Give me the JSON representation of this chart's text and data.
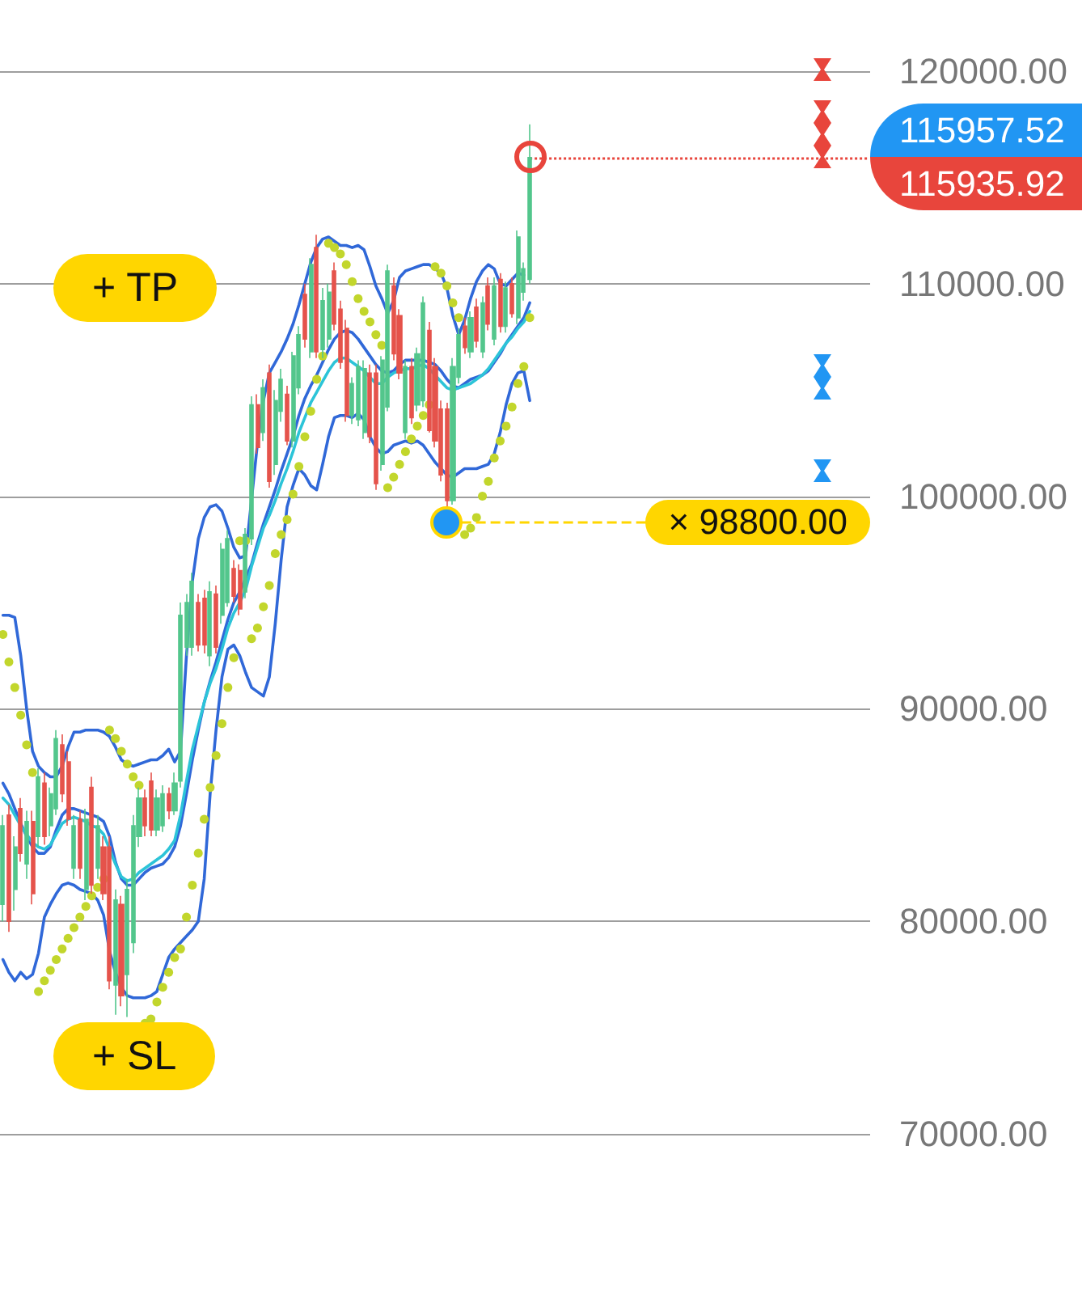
{
  "chart_data": {
    "type": "candlestick",
    "categories": [
      null,
      null,
      null,
      null,
      null,
      null,
      null,
      null,
      null,
      null,
      null,
      null,
      null,
      null,
      null,
      null,
      null,
      null,
      null,
      null,
      null,
      null,
      null,
      null,
      null,
      null,
      null,
      null,
      null,
      null,
      null,
      null,
      null,
      null,
      null,
      null,
      null,
      null,
      null,
      null,
      null,
      null,
      null,
      null,
      null,
      null,
      null,
      null,
      null,
      null,
      null,
      null,
      null,
      null,
      null,
      null,
      null,
      null,
      null,
      null,
      null,
      null,
      null,
      null,
      null,
      null,
      null,
      null,
      null,
      null,
      null,
      null,
      null,
      null,
      null,
      null,
      null,
      null,
      null,
      null,
      null,
      null,
      null,
      null,
      null,
      null,
      null,
      null,
      null,
      null,
      null,
      null,
      null,
      null,
      null,
      null,
      null,
      null,
      null,
      null,
      null,
      null,
      null,
      null,
      null,
      null,
      null,
      null,
      null,
      null,
      null,
      null,
      null,
      null,
      null,
      null,
      null,
      null,
      null,
      null,
      null,
      null,
      null,
      null,
      null,
      null,
      null,
      null,
      null,
      null,
      null,
      null,
      null,
      null,
      null,
      null,
      null,
      null,
      null,
      null,
      null,
      null,
      null,
      null,
      null,
      null,
      null
    ],
    "ohlc": [
      [
        80800,
        85000,
        80000,
        84500
      ],
      [
        85000,
        85500,
        79500,
        80000
      ],
      [
        81500,
        84000,
        80500,
        83500
      ],
      [
        85300,
        85800,
        82800,
        83200
      ],
      [
        82700,
        85200,
        82000,
        84700
      ],
      [
        84700,
        85200,
        80800,
        81300
      ],
      [
        84000,
        87200,
        83500,
        86800
      ],
      [
        86500,
        87000,
        83600,
        84000
      ],
      [
        84500,
        86300,
        84000,
        86000
      ],
      [
        85300,
        89000,
        85000,
        88600
      ],
      [
        88300,
        88800,
        85600,
        86000
      ],
      [
        87500,
        88000,
        84500,
        84800
      ],
      [
        82500,
        85000,
        82000,
        84500
      ],
      [
        84800,
        85200,
        82000,
        82500
      ],
      [
        81500,
        85300,
        81000,
        84800
      ],
      [
        86300,
        86800,
        81300,
        81700
      ],
      [
        82500,
        85000,
        82000,
        84500
      ],
      [
        83500,
        84000,
        81000,
        81300
      ],
      [
        83500,
        84000,
        76800,
        77200
      ],
      [
        77000,
        81500,
        75600,
        81000
      ],
      [
        80800,
        81200,
        76000,
        76500
      ],
      [
        77500,
        82000,
        75500,
        81500
      ],
      [
        79000,
        85000,
        78500,
        84500
      ],
      [
        84000,
        86300,
        83500,
        85800
      ],
      [
        85800,
        86200,
        84000,
        84500
      ],
      [
        86600,
        87000,
        84000,
        84300
      ],
      [
        84300,
        86200,
        84000,
        85800
      ],
      [
        84500,
        86400,
        84200,
        86000
      ],
      [
        86000,
        86300,
        84800,
        85200
      ],
      [
        85200,
        87000,
        85000,
        86500
      ],
      [
        86600,
        95000,
        86300,
        94400
      ],
      [
        92900,
        95400,
        92500,
        95000
      ],
      [
        92900,
        96400,
        92500,
        96000
      ],
      [
        95000,
        95400,
        92700,
        93000
      ],
      [
        95200,
        95600,
        92600,
        93000
      ],
      [
        92500,
        96000,
        92000,
        95500
      ],
      [
        95400,
        95800,
        92600,
        92900
      ],
      [
        94400,
        97800,
        94000,
        97500
      ],
      [
        95000,
        98400,
        94800,
        98000
      ],
      [
        96600,
        97000,
        95000,
        95300
      ],
      [
        96500,
        96800,
        94400,
        94700
      ],
      [
        95500,
        98500,
        95200,
        98200
      ],
      [
        98000,
        104700,
        97700,
        104300
      ],
      [
        104300,
        104800,
        102000,
        102300
      ],
      [
        103000,
        105500,
        102600,
        105100
      ],
      [
        105800,
        106200,
        100400,
        100700
      ],
      [
        101500,
        105000,
        101000,
        104500
      ],
      [
        104000,
        106000,
        103500,
        105500
      ],
      [
        104800,
        105200,
        102400,
        102600
      ],
      [
        102600,
        106800,
        102300,
        106600
      ],
      [
        105100,
        108000,
        104800,
        107600
      ],
      [
        109500,
        110000,
        107000,
        107400
      ],
      [
        106800,
        111200,
        106500,
        110900
      ],
      [
        111700,
        112300,
        106500,
        106800
      ],
      [
        106900,
        109800,
        106500,
        109200
      ],
      [
        107400,
        110000,
        107000,
        109600
      ],
      [
        110600,
        111000,
        107800,
        108100
      ],
      [
        108800,
        109200,
        106000,
        106300
      ],
      [
        107900,
        108300,
        103500,
        103800
      ],
      [
        103800,
        105600,
        103400,
        105300
      ],
      [
        103600,
        106400,
        103300,
        106100
      ],
      [
        103000,
        106400,
        102700,
        106000
      ],
      [
        105800,
        106200,
        102500,
        102800
      ],
      [
        105800,
        106200,
        100300,
        100600
      ],
      [
        101500,
        106600,
        101200,
        106400
      ],
      [
        104200,
        110900,
        104000,
        110600
      ],
      [
        109900,
        110300,
        106400,
        106700
      ],
      [
        108500,
        108800,
        105500,
        105800
      ],
      [
        103000,
        106400,
        102700,
        106100
      ],
      [
        106100,
        106500,
        103400,
        103700
      ],
      [
        104300,
        107000,
        104000,
        106700
      ],
      [
        104500,
        109400,
        104200,
        109100
      ],
      [
        107800,
        108200,
        103000,
        103100
      ],
      [
        106100,
        106500,
        102300,
        102600
      ],
      [
        104100,
        104500,
        100700,
        101000
      ],
      [
        104100,
        104400,
        99500,
        99800
      ],
      [
        99800,
        106500,
        99600,
        106100
      ],
      [
        105600,
        107900,
        105300,
        107600
      ],
      [
        108000,
        108400,
        106700,
        107000
      ],
      [
        106800,
        108700,
        106500,
        108400
      ],
      [
        108900,
        109300,
        107000,
        107300
      ],
      [
        106800,
        109400,
        106500,
        109100
      ],
      [
        109900,
        110300,
        107800,
        108100
      ],
      [
        107400,
        110300,
        107100,
        109900
      ],
      [
        110200,
        110500,
        107700,
        108000
      ],
      [
        108000,
        110100,
        107700,
        109800
      ],
      [
        110000,
        110300,
        108400,
        108600
      ],
      [
        108400,
        112500,
        108100,
        112200
      ],
      [
        109600,
        111000,
        109200,
        110700
      ],
      [
        110200,
        117500,
        110000,
        115935.92
      ],
      null,
      null,
      null,
      null,
      null,
      null,
      null,
      null,
      null,
      null,
      null,
      null,
      null,
      null,
      null,
      null,
      null,
      null,
      null,
      null,
      null,
      null,
      null,
      null,
      null,
      null,
      null,
      null,
      null,
      null,
      null,
      null,
      null,
      null,
      null,
      null,
      null,
      null,
      null,
      null,
      null,
      null,
      null,
      null,
      null,
      null,
      null,
      null,
      null,
      null,
      null,
      null,
      null,
      null,
      null,
      null,
      null
    ],
    "colors": [
      "#53c68c",
      "#e5534b",
      "#53c68c",
      "#e5534b",
      "#53c68c",
      "#e5534b",
      "#53c68c",
      "#e5534b",
      "#53c68c",
      "#53c68c",
      "#e5534b",
      "#e5534b",
      "#53c68c",
      "#e5534b",
      "#53c68c",
      "#e5534b",
      "#53c68c",
      "#e5534b",
      "#e5534b",
      "#53c68c",
      "#e5534b",
      "#53c68c",
      "#53c68c",
      "#53c68c",
      "#e5534b",
      "#e5534b",
      "#53c68c",
      "#53c68c",
      "#e5534b",
      "#53c68c",
      "#53c68c",
      "#53c68c",
      "#53c68c",
      "#e5534b",
      "#e5534b",
      "#53c68c",
      "#e5534b",
      "#53c68c",
      "#53c68c",
      "#e5534b",
      "#e5534b",
      "#53c68c",
      "#53c68c",
      "#e5534b",
      "#53c68c",
      "#e5534b",
      "#53c68c",
      "#53c68c",
      "#e5534b",
      "#53c68c",
      "#53c68c",
      "#e5534b",
      "#53c68c",
      "#e5534b",
      "#53c68c",
      "#53c68c",
      "#e5534b",
      "#e5534b",
      "#e5534b",
      "#53c68c",
      "#53c68c",
      "#53c68c",
      "#e5534b",
      "#e5534b",
      "#53c68c",
      "#53c68c",
      "#e5534b",
      "#e5534b",
      "#53c68c",
      "#e5534b",
      "#53c68c",
      "#53c68c",
      "#e5534b",
      "#e5534b",
      "#e5534b",
      "#e5534b",
      "#53c68c",
      "#53c68c",
      "#e5534b",
      "#53c68c",
      "#e5534b",
      "#53c68c",
      "#e5534b",
      "#53c68c",
      "#e5534b",
      "#53c68c",
      "#e5534b",
      "#53c68c",
      "#53c68c",
      "#53c68c",
      null,
      null,
      null,
      null,
      null,
      null,
      null,
      null,
      null,
      null,
      null,
      null,
      null,
      null,
      null,
      null,
      null,
      null,
      null,
      null,
      null,
      null,
      null,
      null,
      null,
      null,
      null,
      null,
      null,
      null,
      null,
      null,
      null,
      null,
      null,
      null,
      null,
      null,
      null,
      null,
      null,
      null,
      null,
      null,
      null,
      null,
      null,
      null,
      null,
      null,
      null,
      null,
      null,
      null,
      null,
      null,
      null
    ],
    "series": [
      {
        "type": "line",
        "color": "#3068d8",
        "values": [
          94400,
          94400,
          94300,
          92500,
          90000,
          88000,
          87300,
          87000,
          86800,
          86800,
          87300,
          88200,
          88900,
          88900,
          89000,
          89000,
          89000,
          88900,
          88700,
          88200,
          87600,
          87400,
          87300,
          87400,
          87500,
          87600,
          87600,
          87800,
          88100,
          87500,
          88000,
          92500,
          96000,
          98000,
          99000,
          99500,
          99600,
          99300,
          98500,
          97600,
          97100,
          97200,
          null,
          102500,
          104500,
          105800,
          106300,
          106800,
          107400,
          108100,
          109000,
          110000,
          111000,
          111700,
          112100,
          112200,
          112000,
          111800,
          111800,
          111700,
          111800,
          111600,
          110800,
          109900,
          109300,
          108600,
          109200,
          110300,
          110600,
          110700,
          110800,
          110900,
          110900,
          110700,
          110500,
          109800,
          108500,
          107600,
          108300,
          109300,
          110100,
          110600,
          110900,
          110700,
          110000,
          109900,
          110200,
          110500,
          110400,
          null,
          null,
          null,
          null,
          null,
          null,
          null,
          null,
          null,
          null,
          null,
          null,
          null,
          null,
          null,
          null,
          null,
          null,
          null,
          null,
          null,
          null,
          null,
          null,
          null,
          null,
          null,
          null,
          null,
          null,
          null,
          null,
          null,
          null,
          null,
          null,
          null,
          null,
          null,
          null,
          null,
          null,
          null,
          null,
          null,
          null,
          null,
          null,
          null,
          null,
          null,
          null,
          null,
          null,
          null,
          null,
          null,
          null
        ]
      },
      {
        "type": "line",
        "color": "#3068d8",
        "values": [
          86500,
          86000,
          85300,
          84600,
          84000,
          83500,
          83200,
          83200,
          83500,
          84300,
          85000,
          85300,
          85300,
          85200,
          85100,
          85000,
          84900,
          84700,
          84000,
          82800,
          82000,
          81700,
          81700,
          82000,
          82300,
          82500,
          82600,
          82700,
          83000,
          83500,
          84500,
          86000,
          87600,
          89000,
          90300,
          91300,
          92200,
          93200,
          94200,
          95000,
          95500,
          null,
          96800,
          97800,
          98700,
          99500,
          100300,
          101200,
          102000,
          102800,
          103800,
          104600,
          105200,
          105700,
          106300,
          106900,
          107400,
          107700,
          107800,
          107700,
          107400,
          107000,
          106600,
          106200,
          105900,
          105800,
          105900,
          106200,
          106400,
          106400,
          106400,
          106400,
          106300,
          106200,
          105900,
          105500,
          105200,
          105100,
          105300,
          105500,
          105600,
          105700,
          105900,
          106300,
          106700,
          107200,
          107600,
          108000,
          108400,
          109100,
          null,
          null,
          null,
          null,
          null,
          null,
          null,
          null,
          null,
          null,
          null,
          null,
          null,
          null,
          null,
          null,
          null,
          null,
          null,
          null,
          null,
          null,
          null,
          null,
          null,
          null,
          null,
          null,
          null,
          null,
          null,
          null,
          null,
          null,
          null,
          null,
          null,
          null,
          null,
          null,
          null,
          null,
          null,
          null,
          null,
          null,
          null,
          null,
          null,
          null,
          null,
          null,
          null,
          null,
          null,
          null,
          null
        ]
      },
      {
        "type": "line",
        "color": "#3068d8",
        "values": [
          78200,
          77600,
          77200,
          77600,
          77300,
          77500,
          78500,
          80200,
          80800,
          81300,
          81700,
          81800,
          81700,
          81500,
          81400,
          81300,
          81000,
          80300,
          78600,
          77600,
          76900,
          76500,
          76400,
          76400,
          76400,
          76500,
          76700,
          77500,
          78300,
          78700,
          79000,
          79300,
          79600,
          80000,
          82000,
          86000,
          89000,
          91500,
          92800,
          93000,
          92500,
          91700,
          91000,
          90800,
          90600,
          91500,
          94000,
          97000,
          99500,
          100500,
          101300,
          101000,
          100500,
          100300,
          101500,
          102800,
          103700,
          103800,
          103800,
          103700,
          103900,
          103600,
          102800,
          102300,
          102000,
          102100,
          102400,
          102500,
          102600,
          102500,
          102600,
          102400,
          102000,
          101600,
          101300,
          101000,
          100900,
          101100,
          101300,
          101300,
          101300,
          101400,
          101500,
          102000,
          103000,
          104300,
          105300,
          105800,
          105900,
          104500,
          null,
          null,
          null,
          null,
          null,
          null,
          null,
          null,
          null,
          null,
          null,
          null,
          null,
          null,
          null,
          null,
          null,
          null,
          null,
          null,
          null,
          null,
          null,
          null,
          null,
          null,
          null,
          null,
          null,
          null,
          null,
          null,
          null,
          null,
          null,
          null,
          null,
          null,
          null,
          null,
          null,
          null,
          null,
          null,
          null,
          null,
          null,
          null,
          null,
          null,
          null,
          null,
          null,
          null,
          null,
          null,
          null
        ]
      },
      {
        "type": "line",
        "color": "#2cc4d8",
        "values": [
          85800,
          85500,
          85000,
          84500,
          84100,
          83700,
          83500,
          83400,
          83600,
          84100,
          84600,
          84800,
          84900,
          84800,
          84700,
          84500,
          84400,
          84100,
          83400,
          82700,
          82100,
          81900,
          82000,
          82300,
          82500,
          82700,
          82900,
          83100,
          83400,
          83800,
          85000,
          86600,
          88100,
          89200,
          90300,
          91200,
          91900,
          92800,
          93800,
          94500,
          95000,
          95600,
          96700,
          97600,
          98500,
          99100,
          99800,
          100600,
          101300,
          102100,
          103000,
          103700,
          104400,
          104900,
          105400,
          105900,
          106300,
          106500,
          106500,
          106300,
          106100,
          105900,
          105600,
          105300,
          105300,
          105600,
          105800,
          105900,
          106000,
          106000,
          null,
          106200,
          106000,
          105700,
          105400,
          105100,
          105000,
          105100,
          105200,
          105300,
          105500,
          105700,
          106000,
          106400,
          106800,
          107200,
          107500,
          107900,
          108200,
          108700,
          null,
          null,
          null,
          null,
          null,
          null,
          null,
          null,
          null,
          null,
          null,
          null,
          null,
          null,
          null,
          null,
          null,
          null,
          null,
          null,
          null,
          null,
          null,
          null,
          null,
          null,
          null,
          null,
          null,
          null,
          null,
          null,
          null,
          null,
          null,
          null,
          null,
          null,
          null,
          null,
          null,
          null,
          null,
          null,
          null,
          null,
          null,
          null,
          null,
          null,
          null,
          null,
          null,
          null,
          null,
          null,
          null
        ]
      },
      {
        "type": "scatter",
        "color": "#c2d62c",
        "marker": "circle",
        "values": [
          93500,
          92200,
          91000,
          89700,
          88300,
          87000,
          76700,
          77200,
          77700,
          78200,
          78700,
          79200,
          79700,
          80200,
          80700,
          81200,
          81600,
          82000,
          89000,
          88600,
          88000,
          87400,
          86800,
          86400,
          75200,
          75400,
          76200,
          76900,
          77600,
          78300,
          78700,
          80200,
          81700,
          83200,
          84800,
          86300,
          87800,
          89300,
          91000,
          92400,
          97900,
          97900,
          93300,
          93800,
          94800,
          95800,
          97300,
          98200,
          98900,
          100100,
          101400,
          102800,
          104000,
          105500,
          106600,
          111900,
          111700,
          111400,
          110900,
          110100,
          109300,
          108700,
          108200,
          107600,
          107100,
          100400,
          100900,
          101500,
          102100,
          102700,
          103300,
          103800,
          104300,
          110800,
          110500,
          109900,
          109100,
          108400,
          98200,
          98500,
          99000,
          100000,
          100700,
          101800,
          102600,
          103300,
          104200,
          105300,
          106100,
          108400,
          null,
          null,
          null,
          null,
          null,
          null,
          null,
          null,
          null,
          null,
          null,
          null,
          null,
          null,
          null,
          null,
          null,
          null,
          null,
          null,
          null,
          null,
          null,
          null,
          null,
          null,
          null,
          null,
          null,
          null,
          null,
          null,
          null,
          null,
          null,
          null,
          null,
          null,
          null,
          null,
          null,
          null,
          null,
          null,
          null,
          null,
          null,
          null,
          null,
          null,
          null,
          null,
          null,
          null,
          null,
          null,
          null
        ]
      }
    ],
    "ylim": [
      70000,
      120000
    ],
    "yticks": [
      {
        "value": 70000,
        "label": "70000.00"
      },
      {
        "value": 80000,
        "label": "80000.00"
      },
      {
        "value": 90000,
        "label": "90000.00"
      },
      {
        "value": 100000,
        "label": "100000.00"
      },
      {
        "value": 110000,
        "label": "110000.00"
      },
      {
        "value": 120000,
        "label": "120000.00"
      }
    ],
    "tick_labels": "y",
    "grid": "y",
    "ref_lines": [
      {
        "axis": "y",
        "value": 115935.92,
        "label": "115935.92",
        "color": "#e8453c",
        "line_style": "dotted"
      },
      {
        "axis": "y",
        "value": 98800,
        "label": "× 98800.00",
        "color": "#ffd600",
        "line_style": "dashed"
      }
    ],
    "annotations": [
      "+ TP",
      "+ SL",
      "115957.52"
    ]
  }
}
